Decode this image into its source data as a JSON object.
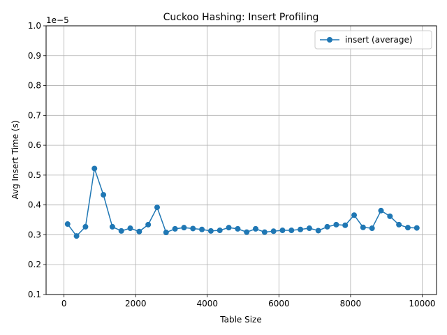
{
  "chart_data": {
    "type": "line",
    "title": "Cuckoo Hashing: Insert Profiling",
    "xlabel": "Table Size",
    "ylabel": "Avg Insert Time (s)",
    "y_offset_label": "1e−5",
    "xlim": [
      -500,
      10400
    ],
    "ylim": [
      0.1,
      1.0
    ],
    "xticks": [
      0,
      2000,
      4000,
      6000,
      8000,
      10000
    ],
    "xtick_labels": [
      "0",
      "2000",
      "4000",
      "6000",
      "8000",
      "10000"
    ],
    "yticks": [
      0.1,
      0.2,
      0.3,
      0.4,
      0.5,
      0.6,
      0.7,
      0.8,
      0.9,
      1.0
    ],
    "ytick_labels": [
      "0.1",
      "0.2",
      "0.3",
      "0.4",
      "0.5",
      "0.6",
      "0.7",
      "0.8",
      "0.9",
      "1.0"
    ],
    "grid": true,
    "legend_position": "upper right",
    "colors": {
      "series": "#1f77b4",
      "grid": "#b0b0b0"
    },
    "series": [
      {
        "name": "insert (average)",
        "marker": "circle",
        "x": [
          100,
          350,
          600,
          850,
          1100,
          1350,
          1600,
          1850,
          2100,
          2350,
          2600,
          2850,
          3100,
          3350,
          3600,
          3850,
          4100,
          4350,
          4600,
          4850,
          5100,
          5350,
          5600,
          5850,
          6100,
          6350,
          6600,
          6850,
          7100,
          7350,
          7600,
          7850,
          8100,
          8350,
          8600,
          8850,
          9100,
          9350,
          9600,
          9850
        ],
        "y": [
          0.336,
          0.296,
          0.327,
          0.522,
          0.434,
          0.327,
          0.313,
          0.322,
          0.311,
          0.334,
          0.392,
          0.308,
          0.32,
          0.324,
          0.321,
          0.318,
          0.313,
          0.315,
          0.324,
          0.32,
          0.309,
          0.32,
          0.309,
          0.312,
          0.315,
          0.315,
          0.318,
          0.322,
          0.314,
          0.327,
          0.334,
          0.332,
          0.366,
          0.325,
          0.322,
          0.381,
          0.362,
          0.334,
          0.324,
          0.323
        ]
      }
    ]
  }
}
